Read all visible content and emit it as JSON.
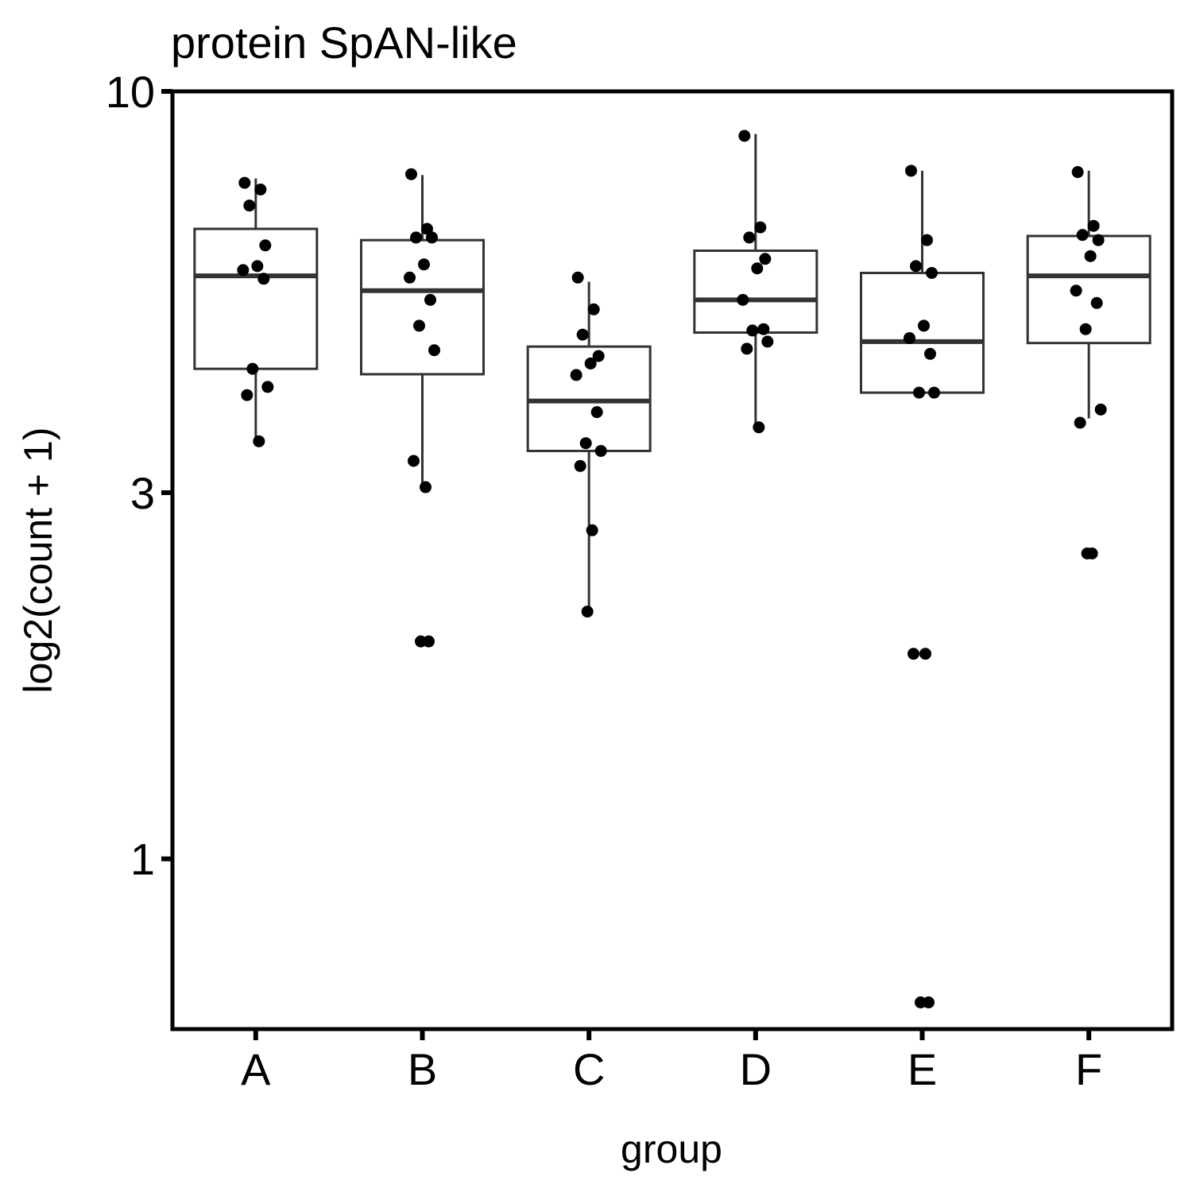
{
  "chart_data": {
    "type": "boxplot",
    "title": "protein SpAN-like",
    "xlabel": "group",
    "ylabel": "log2(count + 1)",
    "y_scale": "log",
    "ylim": [
      0.6,
      10
    ],
    "y_ticks": [
      1,
      3,
      10
    ],
    "y_tick_labels": [
      "1",
      "3",
      "10"
    ],
    "categories": [
      "A",
      "B",
      "C",
      "D",
      "E",
      "F"
    ],
    "grid": false,
    "boxes": [
      {
        "group": "A",
        "whisker_low": 3.5,
        "q1": 4.35,
        "median": 5.75,
        "q3": 6.62,
        "whisker_high": 7.7
      },
      {
        "group": "B",
        "whisker_low": 3.05,
        "q1": 4.28,
        "median": 5.5,
        "q3": 6.4,
        "whisker_high": 7.78
      },
      {
        "group": "C",
        "whisker_low": 2.1,
        "q1": 3.4,
        "median": 3.95,
        "q3": 4.65,
        "whisker_high": 5.65
      },
      {
        "group": "D",
        "whisker_low": 3.65,
        "q1": 4.85,
        "median": 5.35,
        "q3": 6.2,
        "whisker_high": 8.8
      },
      {
        "group": "E",
        "whisker_low": 4.05,
        "q1": 4.05,
        "median": 4.72,
        "q3": 5.8,
        "whisker_high": 7.88
      },
      {
        "group": "F",
        "whisker_low": 3.75,
        "q1": 4.7,
        "median": 5.75,
        "q3": 6.48,
        "whisker_high": 7.88
      }
    ],
    "points": [
      {
        "group": "A",
        "values": [
          7.6,
          7.45,
          7.1,
          6.3,
          5.92,
          5.85,
          5.7,
          4.35,
          4.12,
          4.02,
          3.5
        ]
      },
      {
        "group": "B",
        "values": [
          7.8,
          6.62,
          6.45,
          6.45,
          5.95,
          5.72,
          5.35,
          4.95,
          4.6,
          3.3,
          3.05,
          1.92,
          1.92
        ]
      },
      {
        "group": "C",
        "values": [
          5.72,
          5.2,
          4.82,
          4.52,
          4.42,
          4.27,
          3.82,
          3.48,
          3.4,
          3.25,
          2.68,
          2.1
        ]
      },
      {
        "group": "D",
        "values": [
          8.75,
          6.65,
          6.45,
          6.05,
          5.88,
          5.35,
          4.9,
          4.88,
          4.72,
          4.62,
          3.65
        ]
      },
      {
        "group": "E",
        "values": [
          7.88,
          6.4,
          5.92,
          5.8,
          4.95,
          4.77,
          4.55,
          4.05,
          4.05,
          1.85,
          1.85,
          0.65,
          0.65
        ]
      },
      {
        "group": "F",
        "values": [
          7.85,
          6.68,
          6.5,
          6.4,
          6.1,
          5.5,
          5.3,
          4.9,
          3.85,
          3.7,
          2.5,
          2.5
        ]
      }
    ],
    "colors": {
      "box": "#333333",
      "point": "#000000",
      "frame": "#000000",
      "background": "#ffffff"
    }
  }
}
